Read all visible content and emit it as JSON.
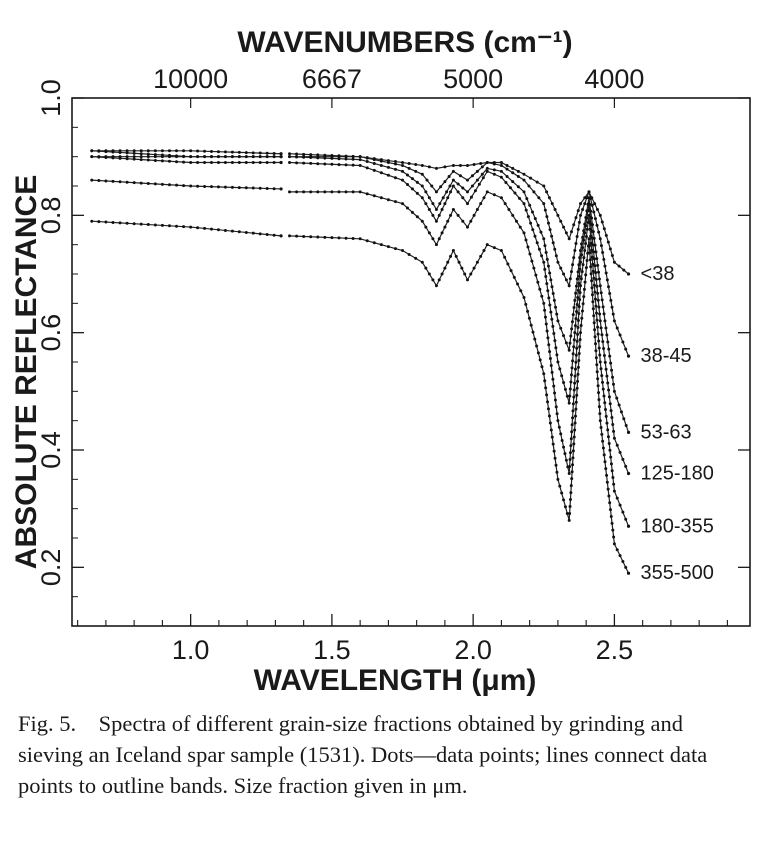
{
  "chart_data": {
    "type": "line",
    "title": "",
    "xlabel": "WAVELENGTH (μm)",
    "ylabel": "ABSOLUTE REFLECTANCE",
    "top_axis_label": "WAVENUMBERS (cm⁻¹)",
    "xlim": [
      0.58,
      2.98
    ],
    "ylim": [
      0.1,
      1.0
    ],
    "x_ticks": [
      1.0,
      1.5,
      2.0,
      2.5
    ],
    "x_tick_labels": [
      "1.0",
      "1.5",
      "2.0",
      "2.5"
    ],
    "y_ticks": [
      0.2,
      0.4,
      0.6,
      0.8,
      1.0
    ],
    "y_tick_labels": [
      "0.2",
      "0.4",
      "0.6",
      "0.8",
      "1.0"
    ],
    "top_ticks": [
      1.0,
      1.5,
      2.0,
      2.5
    ],
    "top_tick_labels": [
      "10000",
      "6667",
      "5000",
      "4000"
    ],
    "grid": false,
    "data_gap": [
      1.32,
      1.35
    ],
    "series": [
      {
        "name": "<38",
        "x": [
          0.65,
          1.0,
          1.32,
          1.35,
          1.6,
          1.75,
          1.82,
          1.87,
          1.93,
          1.98,
          2.05,
          2.1,
          2.18,
          2.25,
          2.3,
          2.34,
          2.38,
          2.41,
          2.45,
          2.5,
          2.55
        ],
        "y": [
          0.91,
          0.91,
          0.905,
          0.905,
          0.9,
          0.89,
          0.885,
          0.88,
          0.885,
          0.885,
          0.89,
          0.89,
          0.87,
          0.85,
          0.8,
          0.76,
          0.82,
          0.84,
          0.8,
          0.72,
          0.7
        ]
      },
      {
        "name": "38-45",
        "x": [
          0.65,
          1.0,
          1.32,
          1.35,
          1.6,
          1.75,
          1.82,
          1.87,
          1.93,
          1.98,
          2.05,
          2.1,
          2.18,
          2.25,
          2.3,
          2.34,
          2.38,
          2.41,
          2.45,
          2.5,
          2.55
        ],
        "y": [
          0.9,
          0.9,
          0.9,
          0.9,
          0.9,
          0.885,
          0.87,
          0.84,
          0.875,
          0.86,
          0.89,
          0.885,
          0.86,
          0.82,
          0.72,
          0.68,
          0.8,
          0.84,
          0.76,
          0.62,
          0.56
        ]
      },
      {
        "name": "53-63",
        "x": [
          0.65,
          1.0,
          1.32,
          1.35,
          1.6,
          1.75,
          1.82,
          1.87,
          1.93,
          1.98,
          2.05,
          2.1,
          2.18,
          2.25,
          2.3,
          2.34,
          2.38,
          2.41,
          2.45,
          2.5,
          2.55
        ],
        "y": [
          0.91,
          0.9,
          0.9,
          0.9,
          0.895,
          0.875,
          0.85,
          0.81,
          0.86,
          0.84,
          0.88,
          0.875,
          0.84,
          0.76,
          0.62,
          0.57,
          0.74,
          0.83,
          0.68,
          0.5,
          0.43
        ]
      },
      {
        "name": "125-180",
        "x": [
          0.65,
          1.0,
          1.32,
          1.35,
          1.6,
          1.75,
          1.82,
          1.87,
          1.93,
          1.98,
          2.05,
          2.1,
          2.18,
          2.25,
          2.3,
          2.34,
          2.38,
          2.41,
          2.45,
          2.5,
          2.55
        ],
        "y": [
          0.9,
          0.89,
          0.89,
          0.89,
          0.885,
          0.86,
          0.83,
          0.79,
          0.85,
          0.82,
          0.875,
          0.865,
          0.82,
          0.72,
          0.55,
          0.48,
          0.72,
          0.82,
          0.62,
          0.42,
          0.36
        ]
      },
      {
        "name": "180-355",
        "x": [
          0.65,
          1.0,
          1.32,
          1.35,
          1.6,
          1.75,
          1.82,
          1.87,
          1.93,
          1.98,
          2.05,
          2.1,
          2.18,
          2.25,
          2.3,
          2.34,
          2.38,
          2.41,
          2.45,
          2.5,
          2.55
        ],
        "y": [
          0.86,
          0.85,
          0.845,
          0.84,
          0.84,
          0.82,
          0.79,
          0.75,
          0.81,
          0.78,
          0.84,
          0.83,
          0.77,
          0.65,
          0.45,
          0.36,
          0.68,
          0.8,
          0.55,
          0.33,
          0.27
        ]
      },
      {
        "name": "355-500",
        "x": [
          0.65,
          1.0,
          1.32,
          1.35,
          1.6,
          1.75,
          1.82,
          1.87,
          1.93,
          1.98,
          2.05,
          2.1,
          2.18,
          2.25,
          2.3,
          2.34,
          2.38,
          2.41,
          2.45,
          2.5,
          2.55
        ],
        "y": [
          0.79,
          0.78,
          0.765,
          0.765,
          0.76,
          0.74,
          0.72,
          0.68,
          0.74,
          0.69,
          0.75,
          0.74,
          0.66,
          0.53,
          0.35,
          0.28,
          0.6,
          0.76,
          0.45,
          0.24,
          0.19
        ]
      }
    ]
  },
  "caption": "Fig. 5. Spectra of different grain-size fractions obtained by grinding and sieving an Iceland spar sample (1531). Dots—data points; lines connect data points to outline bands. Size fraction given in μm."
}
